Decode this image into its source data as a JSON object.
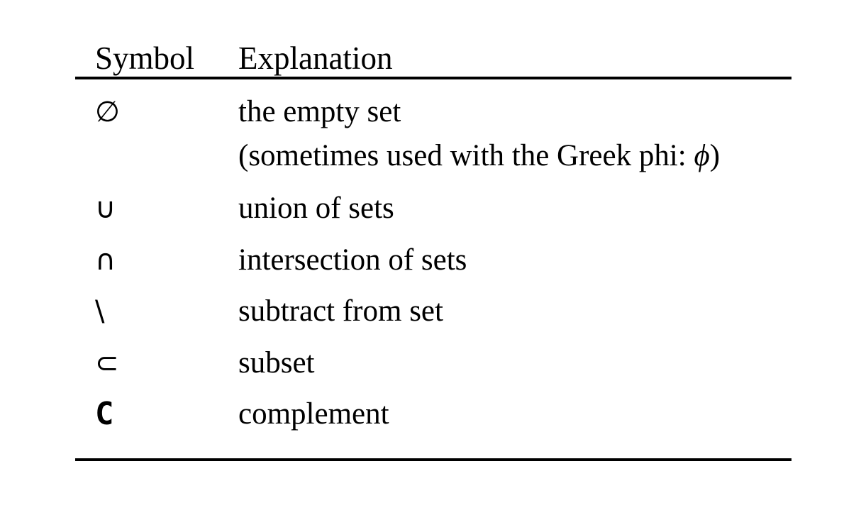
{
  "table": {
    "headers": {
      "symbol": "Symbol",
      "explanation": "Explanation"
    },
    "rows": [
      {
        "symbol": "∅",
        "explanation": "the empty set",
        "note_prefix": "(sometimes used with the Greek phi: ",
        "note_symbol": "ϕ",
        "note_suffix": ")"
      },
      {
        "symbol": "∪",
        "explanation": "union of sets"
      },
      {
        "symbol": "∩",
        "explanation": "intersection of sets"
      },
      {
        "symbol": "\\",
        "explanation": "subtract from set"
      },
      {
        "symbol": "⊂",
        "explanation": "subset"
      },
      {
        "symbol": "C",
        "explanation": "complement"
      }
    ]
  }
}
